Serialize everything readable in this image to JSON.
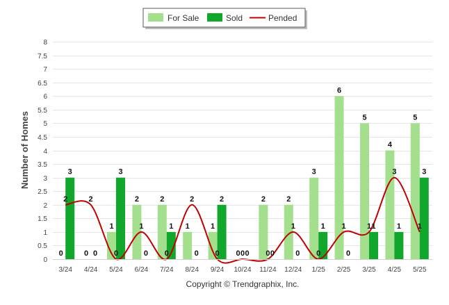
{
  "chart_data": {
    "type": "bar",
    "categories": [
      "3/24",
      "4/24",
      "5/24",
      "6/24",
      "7/24",
      "8/24",
      "9/24",
      "10/24",
      "11/24",
      "12/24",
      "1/25",
      "2/25",
      "3/25",
      "4/25",
      "5/25"
    ],
    "series": [
      {
        "name": "For Sale",
        "type": "bar",
        "values": [
          0,
          0,
          1,
          2,
          2,
          1,
          1,
          0,
          2,
          2,
          3,
          6,
          5,
          4,
          5
        ],
        "color": "#a3df8c"
      },
      {
        "name": "Sold",
        "type": "bar",
        "values": [
          3,
          0,
          3,
          0,
          1,
          0,
          2,
          0,
          0,
          0,
          1,
          0,
          1,
          1,
          3
        ],
        "color": "#11a62c"
      },
      {
        "name": "Pended",
        "type": "line",
        "values": [
          2,
          2,
          0,
          1,
          0,
          2,
          0,
          0,
          0,
          1,
          0,
          1,
          1,
          3,
          1
        ],
        "color": "#c00000"
      }
    ],
    "ylabel": "Number of Homes",
    "xlabel": "",
    "ylim": [
      0,
      8
    ],
    "yticks": [
      "0",
      "0.5",
      "1",
      "1.5",
      "2",
      "2.5",
      "3",
      "3.5",
      "4",
      "4.5",
      "5",
      "5.5",
      "6",
      "6.5",
      "7",
      "7.5",
      "8"
    ],
    "grid": true,
    "legend": "top-center"
  },
  "footer": {
    "copyright": "Copyright © Trendgraphix, Inc."
  }
}
